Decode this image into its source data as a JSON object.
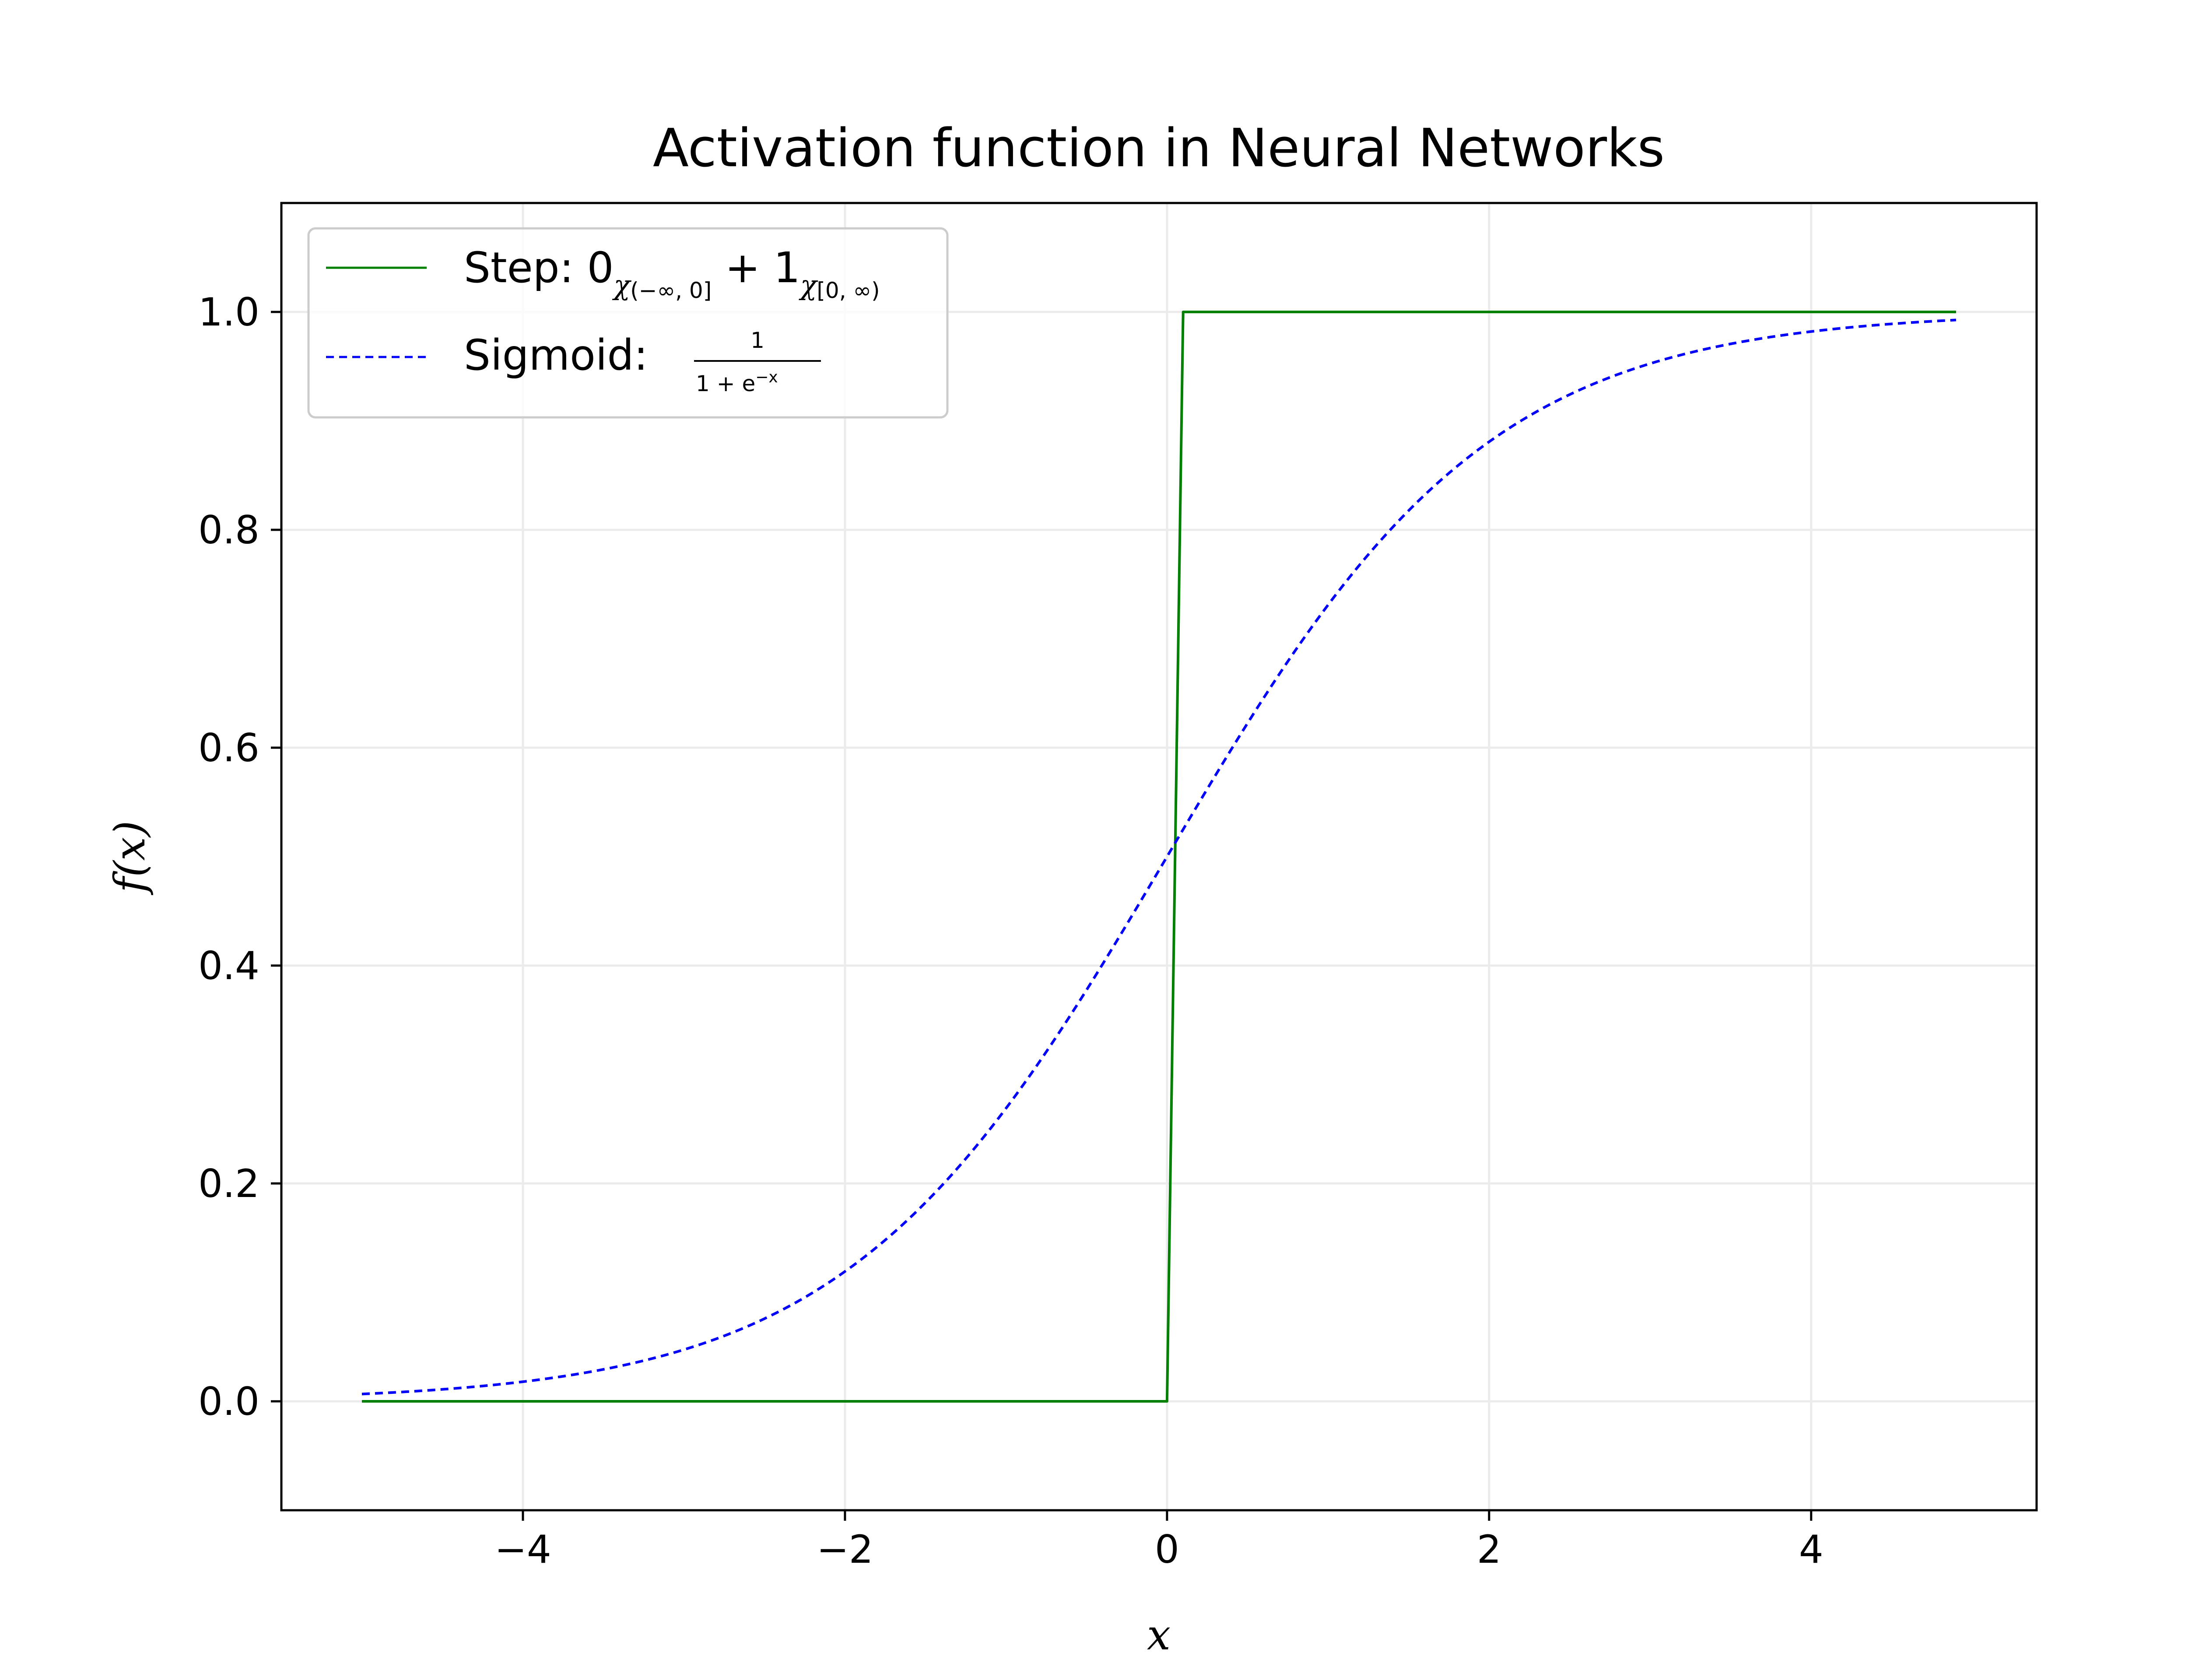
{
  "chart_data": {
    "type": "line",
    "title": "Activation function in Neural Networks",
    "xlabel": "x",
    "ylabel": "f(x)",
    "xlim": [
      -5.5,
      5.4
    ],
    "ylim": [
      -0.1,
      1.1
    ],
    "x_ticks": [
      -4,
      -2,
      0,
      2,
      4
    ],
    "x_tick_labels": [
      "−4",
      "−2",
      "0",
      "2",
      "4"
    ],
    "y_ticks": [
      0.0,
      0.2,
      0.4,
      0.6,
      0.8,
      1.0
    ],
    "y_tick_labels": [
      "0.0",
      "0.2",
      "0.4",
      "0.6",
      "0.8",
      "1.0"
    ],
    "grid": true,
    "legend_position": "upper-left",
    "series": [
      {
        "name": "Step",
        "legend_label": "Step: 0χ(−∞, 0] + 1χ[0, ∞)",
        "color": "#008000",
        "style": "solid",
        "x": [
          -5.0,
          0.0,
          0.1,
          4.9
        ],
        "y": [
          0.0,
          0.0,
          1.0,
          1.0
        ]
      },
      {
        "name": "Sigmoid",
        "legend_label": "Sigmoid: 1 / (1 + e^−x)",
        "color": "#0000ff",
        "style": "dashed",
        "x": [
          -5.0,
          -4.5,
          -4.0,
          -3.5,
          -3.0,
          -2.5,
          -2.0,
          -1.5,
          -1.0,
          -0.5,
          0.0,
          0.5,
          1.0,
          1.5,
          2.0,
          2.5,
          3.0,
          3.5,
          4.0,
          4.5,
          4.9
        ],
        "y": [
          0.007,
          0.011,
          0.018,
          0.029,
          0.047,
          0.076,
          0.119,
          0.182,
          0.269,
          0.378,
          0.5,
          0.622,
          0.731,
          0.818,
          0.881,
          0.924,
          0.953,
          0.971,
          0.982,
          0.989,
          0.993
        ]
      }
    ]
  },
  "legend": {
    "step_prefix": "Step: 0",
    "step_sub1": "χ",
    "step_sub1_small": "(−∞, 0]",
    "step_mid": " + 1",
    "step_sub2": "χ",
    "step_sub2_small": "[0, ∞)",
    "sigmoid_prefix": "Sigmoid: ",
    "sigmoid_num": "1",
    "sigmoid_den": "1 + e",
    "sigmoid_exp": "−x"
  }
}
